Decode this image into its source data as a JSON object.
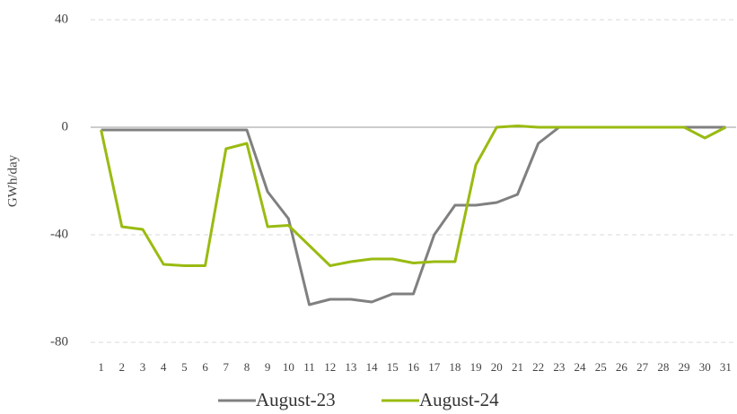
{
  "chart_data": {
    "type": "line",
    "y_label": "GWh/day",
    "categories": [
      "1",
      "2",
      "3",
      "4",
      "5",
      "6",
      "7",
      "8",
      "9",
      "10",
      "11",
      "12",
      "13",
      "14",
      "15",
      "16",
      "17",
      "18",
      "19",
      "20",
      "21",
      "22",
      "23",
      "24",
      "25",
      "26",
      "27",
      "28",
      "29",
      "30",
      "31"
    ],
    "series": [
      {
        "name": "August-23",
        "color": "#808080",
        "values": [
          -1,
          -1,
          -1,
          -1,
          -1,
          -1,
          -1,
          -1,
          -24,
          -34,
          -66,
          -64,
          -64,
          -65,
          -62,
          -62,
          -40,
          -29,
          -29,
          -28,
          -25,
          -6,
          0,
          0,
          0,
          0,
          0,
          0,
          0,
          0,
          0
        ]
      },
      {
        "name": "August-24",
        "color": "#99bb11",
        "values": [
          -1,
          -37,
          -38,
          -51,
          -51.5,
          -51.5,
          -8,
          -6,
          -37,
          -36.5,
          -44,
          -51.5,
          -50,
          -49,
          -49,
          -50.5,
          -50,
          -50,
          -14,
          0,
          0.5,
          0,
          0,
          0,
          0,
          0,
          0,
          0,
          0,
          -4,
          0
        ]
      }
    ],
    "ylim": [
      -80,
      40
    ],
    "yticks": [
      -80,
      -40,
      0,
      40
    ],
    "grid": true,
    "legend": "bottom"
  }
}
